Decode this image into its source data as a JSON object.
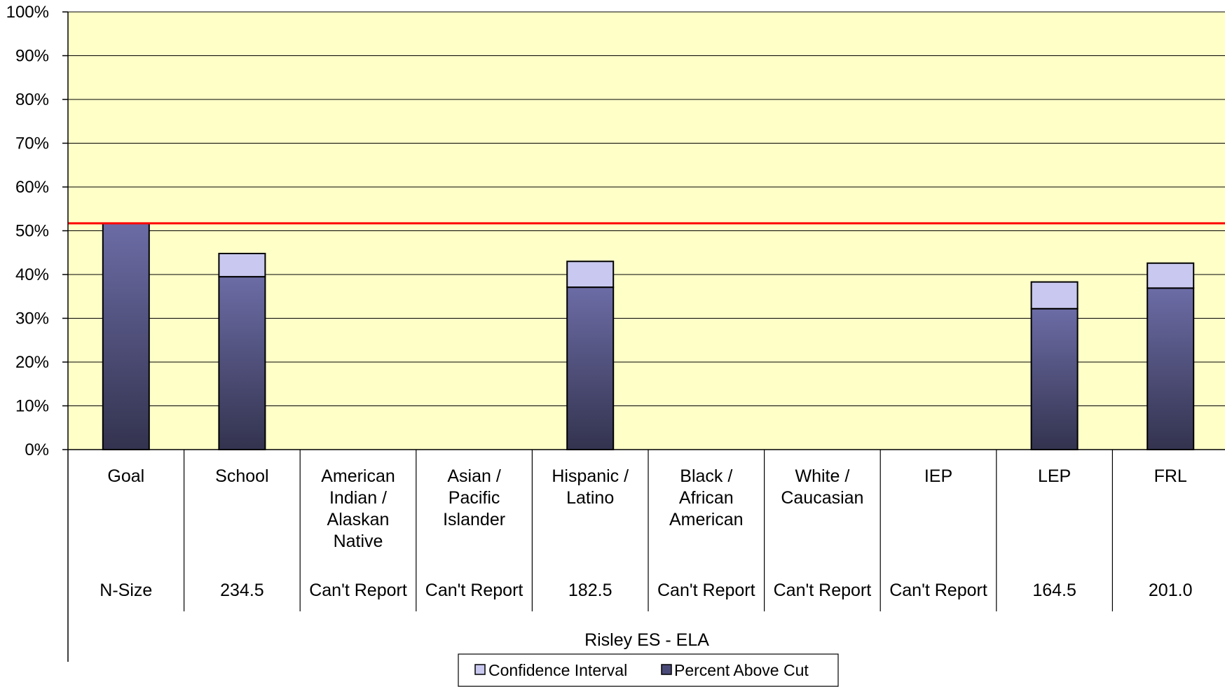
{
  "chart_data": {
    "type": "bar",
    "stacked": true,
    "title": "",
    "xlabel": "Risley ES - ELA",
    "ylabel": "",
    "ylim": [
      0,
      100
    ],
    "y_ticks": [
      "0%",
      "10%",
      "20%",
      "30%",
      "40%",
      "50%",
      "60%",
      "70%",
      "80%",
      "90%",
      "100%"
    ],
    "categories": [
      [
        "Goal"
      ],
      [
        "School"
      ],
      [
        "American",
        "Indian /",
        "Alaskan",
        "Native"
      ],
      [
        "Asian /",
        "Pacific",
        "Islander"
      ],
      [
        "Hispanic /",
        "Latino"
      ],
      [
        "Black /",
        "African",
        "American"
      ],
      [
        "White /",
        "Caucasian"
      ],
      [
        "IEP"
      ],
      [
        "LEP"
      ],
      [
        "FRL"
      ]
    ],
    "n_size_row": [
      "N-Size",
      "234.5",
      "Can't Report",
      "Can't Report",
      "182.5",
      "Can't Report",
      "Can't Report",
      "Can't Report",
      "164.5",
      "201.0"
    ],
    "series": [
      {
        "name": "Percent Above Cut",
        "color": "#5a5a8c",
        "values": [
          51.7,
          39.5,
          null,
          null,
          37.1,
          null,
          null,
          null,
          32.2,
          36.9
        ]
      },
      {
        "name": "Confidence Interval",
        "color": "#c8c8f0",
        "values": [
          0,
          5.3,
          null,
          null,
          5.9,
          null,
          null,
          null,
          6.1,
          5.7
        ]
      }
    ],
    "goal_line": {
      "value": 51.7,
      "color": "#ff0000"
    },
    "plot_background": "#ffffc8",
    "grid": true,
    "legend": [
      "Confidence Interval",
      "Percent Above Cut"
    ],
    "legend_position": "bottom"
  }
}
